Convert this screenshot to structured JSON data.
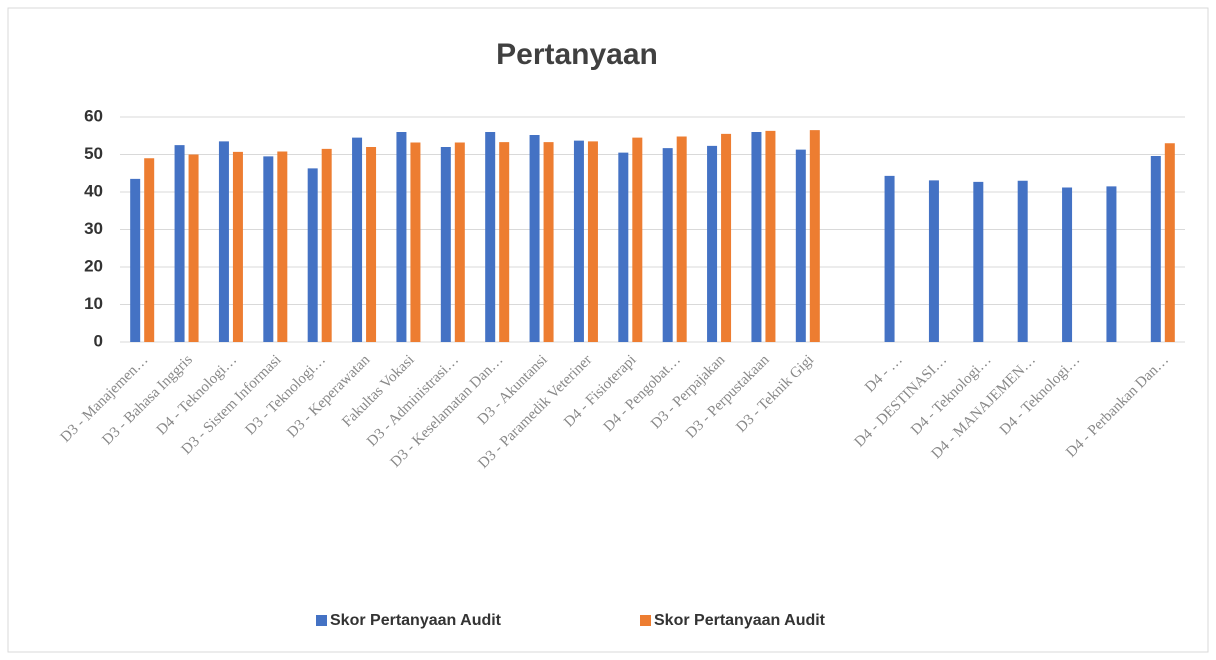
{
  "chart_data": {
    "type": "bar",
    "title": "Pertanyaan",
    "categories": [
      "D3 - Manajemen…",
      "D3 - Bahasa Inggris",
      "D4 - Teknologi…",
      "D3 - Sistem Informasi",
      "D3 - Teknologi…",
      "D3 - Keperawatan",
      "Fakultas Vokasi",
      "D3 - Administrasi…",
      "D3 - Keselamatan Dan…",
      "D3 - Akuntansi",
      "D3 - Paramedik Veteriner",
      "D4 - Fisioterapi",
      "D4 - Pengobat…",
      "D3 - Perpajakan",
      "D3 - Perpustakaan",
      "D3 - Teknik Gigi",
      null,
      "D4 - …",
      "D4 - DESTINASI…",
      "D4 - Teknologi…",
      "D4 - MANAJEMEN…",
      "D4 - Teknologi…",
      null,
      "D4 - Perbankan Dan…"
    ],
    "series": [
      {
        "name": "Skor Pertanyaan Audit",
        "color": "#4472c4",
        "values": [
          43.5,
          52.5,
          53.5,
          49.5,
          46.3,
          54.5,
          56,
          52,
          56,
          55.2,
          53.7,
          50.5,
          51.7,
          52.3,
          56,
          51.3,
          null,
          44.3,
          43.1,
          42.7,
          43,
          41.2,
          41.5,
          49.6
        ]
      },
      {
        "name": "Skor Pertanyaan Audit",
        "color": "#ed7d31",
        "values": [
          49,
          50,
          50.7,
          50.8,
          51.5,
          52,
          53.2,
          53.2,
          53.3,
          53.3,
          53.5,
          54.5,
          54.8,
          55.5,
          56.3,
          56.5,
          null,
          null,
          null,
          null,
          null,
          null,
          null,
          53
        ]
      }
    ],
    "ylim": [
      0,
      60
    ],
    "yticks": [
      0,
      10,
      20,
      30,
      40,
      50,
      60
    ],
    "grid": true,
    "legend": "bottom"
  }
}
